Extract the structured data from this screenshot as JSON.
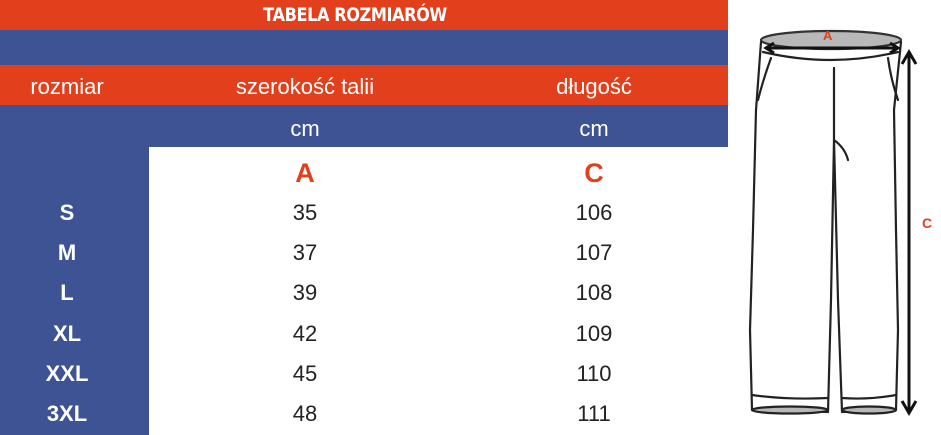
{
  "title": "TABELA ROZMIARÓW",
  "headers": {
    "size": "rozmiar",
    "waist": "szerokość talii",
    "length": "długość"
  },
  "units": {
    "waist": "cm",
    "length": "cm"
  },
  "letters": {
    "waist": "A",
    "length": "C"
  },
  "rows": [
    {
      "size": "S",
      "waist": "35",
      "length": "106"
    },
    {
      "size": "M",
      "waist": "37",
      "length": "107"
    },
    {
      "size": "L",
      "waist": "39",
      "length": "108"
    },
    {
      "size": "XL",
      "waist": "42",
      "length": "109"
    },
    {
      "size": "XXL",
      "waist": "45",
      "length": "110"
    },
    {
      "size": "3XL",
      "waist": "48",
      "length": "111"
    }
  ],
  "diagram": {
    "label_a": "A",
    "label_c": "C"
  },
  "colors": {
    "red": "#e23f1c",
    "blue": "#3d5394"
  }
}
